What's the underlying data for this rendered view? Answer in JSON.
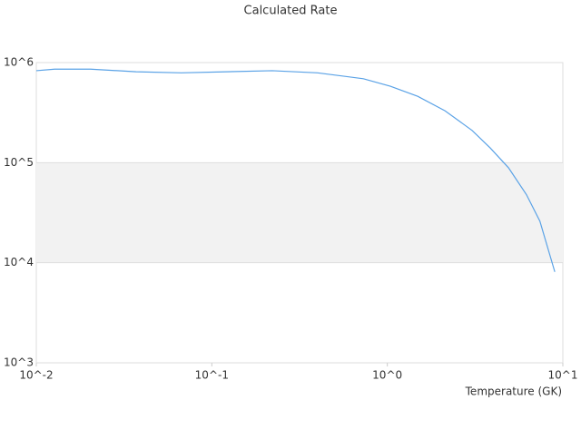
{
  "chart_data": {
    "type": "line",
    "title": "Calculated Rate",
    "x_label": "Temperature (GK)",
    "x": [
      0.01,
      0.0127,
      0.0204,
      0.037,
      0.067,
      0.122,
      0.221,
      0.4,
      0.73,
      1.04,
      1.49,
      2.13,
      3.04,
      3.86,
      4.9,
      6.2,
      7.4,
      9.0
    ],
    "series": [
      {
        "color": "#5aa2e6",
        "values": [
          830000,
          860000,
          860000,
          810000,
          790000,
          810000,
          830000,
          790000,
          690000,
          580000,
          460000,
          330000,
          210000,
          140000,
          89000,
          48000,
          26000,
          8100
        ]
      }
    ],
    "xlim": [
      0.01,
      10
    ],
    "ylim": [
      1000,
      1000000
    ],
    "xlog": true,
    "ylog": true,
    "xticks": [
      {
        "value": 0.01,
        "label": "10^-2"
      },
      {
        "value": 0.1,
        "label": "10^-1"
      },
      {
        "value": 1,
        "label": "10^0"
      },
      {
        "value": 10,
        "label": "10^1"
      }
    ],
    "yticks": [
      {
        "value": 1000,
        "label": "10^3"
      },
      {
        "value": 10000,
        "label": "10^4"
      },
      {
        "value": 100000,
        "label": "10^5"
      },
      {
        "value": 1000000,
        "label": "10^6"
      }
    ],
    "grid": true
  }
}
